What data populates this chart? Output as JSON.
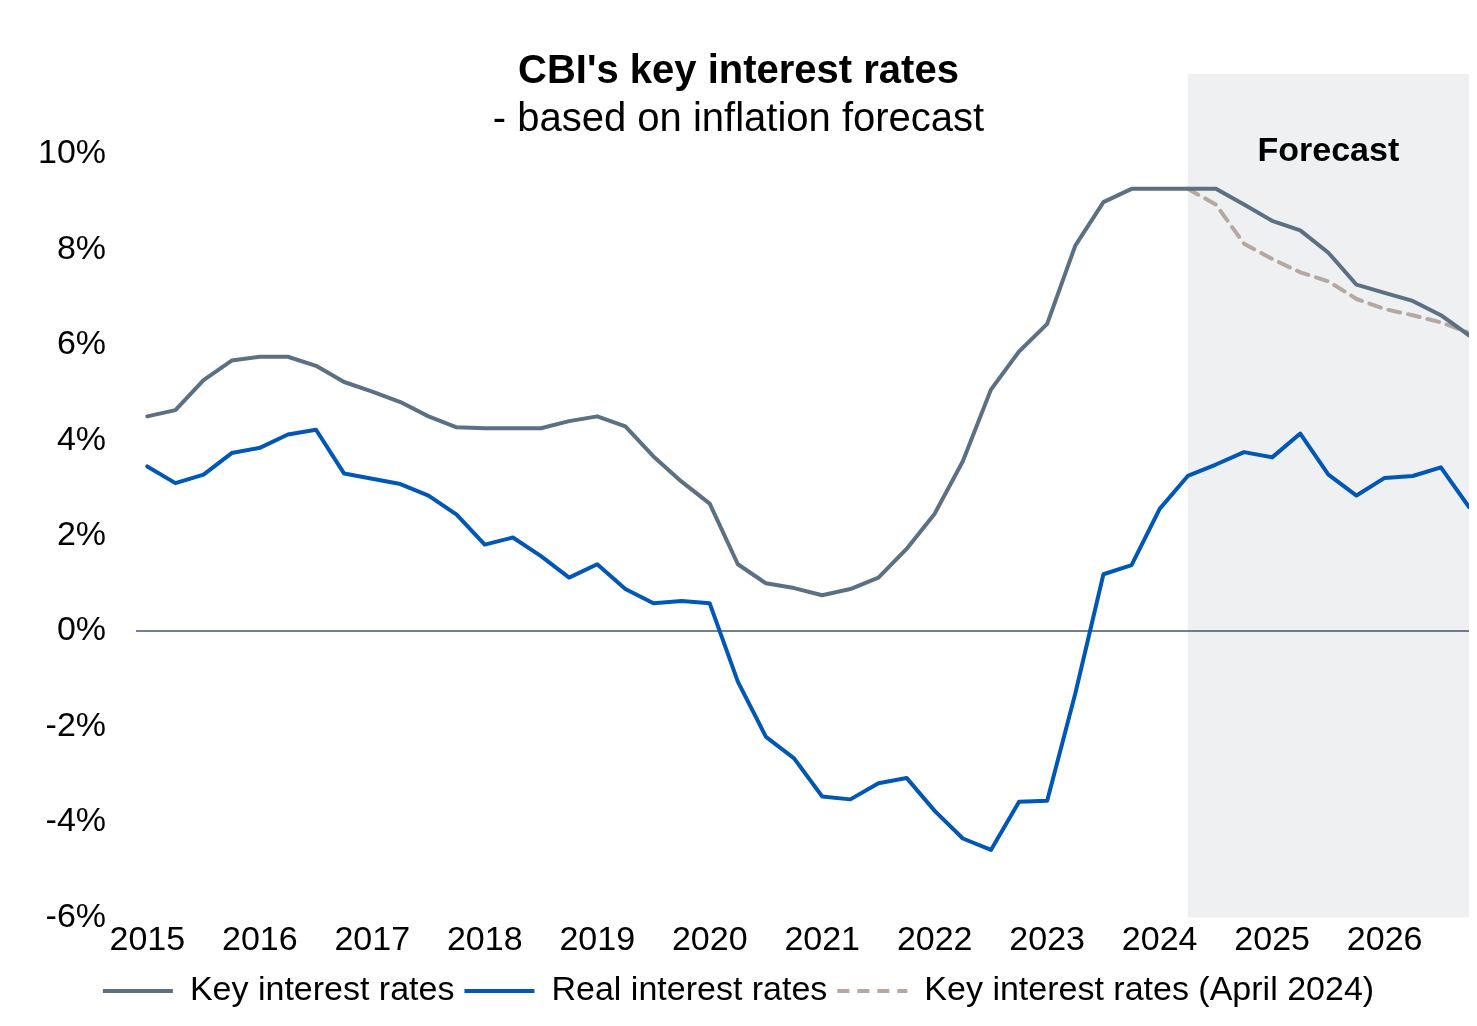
{
  "chart_data": {
    "type": "line",
    "title": "CBI's key interest rates",
    "subtitle": "- based on inflation forecast",
    "x": [
      2015,
      2015.25,
      2015.5,
      2015.75,
      2016,
      2016.25,
      2016.5,
      2016.75,
      2017,
      2017.25,
      2017.5,
      2017.75,
      2018,
      2018.25,
      2018.5,
      2018.75,
      2019,
      2019.25,
      2019.5,
      2019.75,
      2020,
      2020.25,
      2020.5,
      2020.75,
      2021,
      2021.25,
      2021.5,
      2021.75,
      2022,
      2022.25,
      2022.5,
      2022.75,
      2023,
      2023.25,
      2023.5,
      2023.75,
      2024,
      2024.25,
      2024.5,
      2024.75,
      2025,
      2025.25,
      2025.5,
      2025.75,
      2026,
      2026.25,
      2026.5,
      2026.75
    ],
    "series": [
      {
        "name": "Key interest rates",
        "color": "#5b7083",
        "line_style": "solid",
        "values": [
          4.5,
          4.63,
          5.26,
          5.67,
          5.75,
          5.75,
          5.56,
          5.22,
          5.02,
          4.8,
          4.5,
          4.27,
          4.25,
          4.25,
          4.25,
          4.4,
          4.5,
          4.29,
          3.66,
          3.13,
          2.67,
          1.4,
          1.0,
          0.9,
          0.75,
          0.88,
          1.12,
          1.72,
          2.46,
          3.56,
          5.06,
          5.86,
          6.44,
          8.08,
          8.99,
          9.27,
          9.27,
          9.27,
          9.27,
          8.94,
          8.6,
          8.4,
          7.93,
          7.26,
          7.09,
          6.92,
          6.62,
          6.2
        ]
      },
      {
        "name": "Real interest rates",
        "color": "#0057b8",
        "line_style": "solid",
        "values": [
          3.45,
          3.1,
          3.28,
          3.73,
          3.84,
          4.12,
          4.22,
          3.3,
          3.19,
          3.08,
          2.84,
          2.44,
          1.81,
          1.96,
          1.57,
          1.12,
          1.4,
          0.88,
          0.58,
          0.63,
          0.58,
          -1.06,
          -2.22,
          -2.67,
          -3.47,
          -3.53,
          -3.19,
          -3.08,
          -3.77,
          -4.35,
          -4.59,
          -3.58,
          -3.56,
          -1.31,
          1.19,
          1.38,
          2.56,
          3.25,
          3.49,
          3.75,
          3.64,
          4.14,
          3.28,
          2.84,
          3.21,
          3.25,
          3.43,
          2.6
        ]
      },
      {
        "name": "Key interest rates (April 2024)",
        "color": "#b5a8a0",
        "line_style": "dashed",
        "x": [
          2024.25,
          2024.5,
          2024.75,
          2025,
          2025.25,
          2025.5,
          2025.75,
          2026,
          2026.25,
          2026.5,
          2026.75
        ],
        "values": [
          9.27,
          8.94,
          8.12,
          7.8,
          7.52,
          7.33,
          6.96,
          6.75,
          6.62,
          6.47,
          6.25
        ]
      }
    ],
    "xlim": [
      2014.9,
      2026.75
    ],
    "xticks": [
      2015,
      2016,
      2017,
      2018,
      2019,
      2020,
      2021,
      2022,
      2023,
      2024,
      2025,
      2026
    ],
    "ylim": [
      -6,
      10
    ],
    "yticks": [
      {
        "value": -6,
        "label": "-6%"
      },
      {
        "value": -4,
        "label": "-4%"
      },
      {
        "value": -2,
        "label": "-2%"
      },
      {
        "value": 0,
        "label": "0%"
      },
      {
        "value": 2,
        "label": "2%"
      },
      {
        "value": 4,
        "label": "4%"
      },
      {
        "value": 6,
        "label": "6%"
      },
      {
        "value": 8,
        "label": "8%"
      },
      {
        "value": 10,
        "label": "10%"
      }
    ],
    "ref_lines": [
      {
        "axis": "y",
        "value": 0,
        "color": "#44546a"
      }
    ],
    "bands": [
      {
        "axis": "x",
        "from": 2024.25,
        "to": 2026.75,
        "label": "Forecast",
        "color": "#eef0f2"
      }
    ],
    "grid": false,
    "legend": "bottom",
    "marker": "none"
  }
}
